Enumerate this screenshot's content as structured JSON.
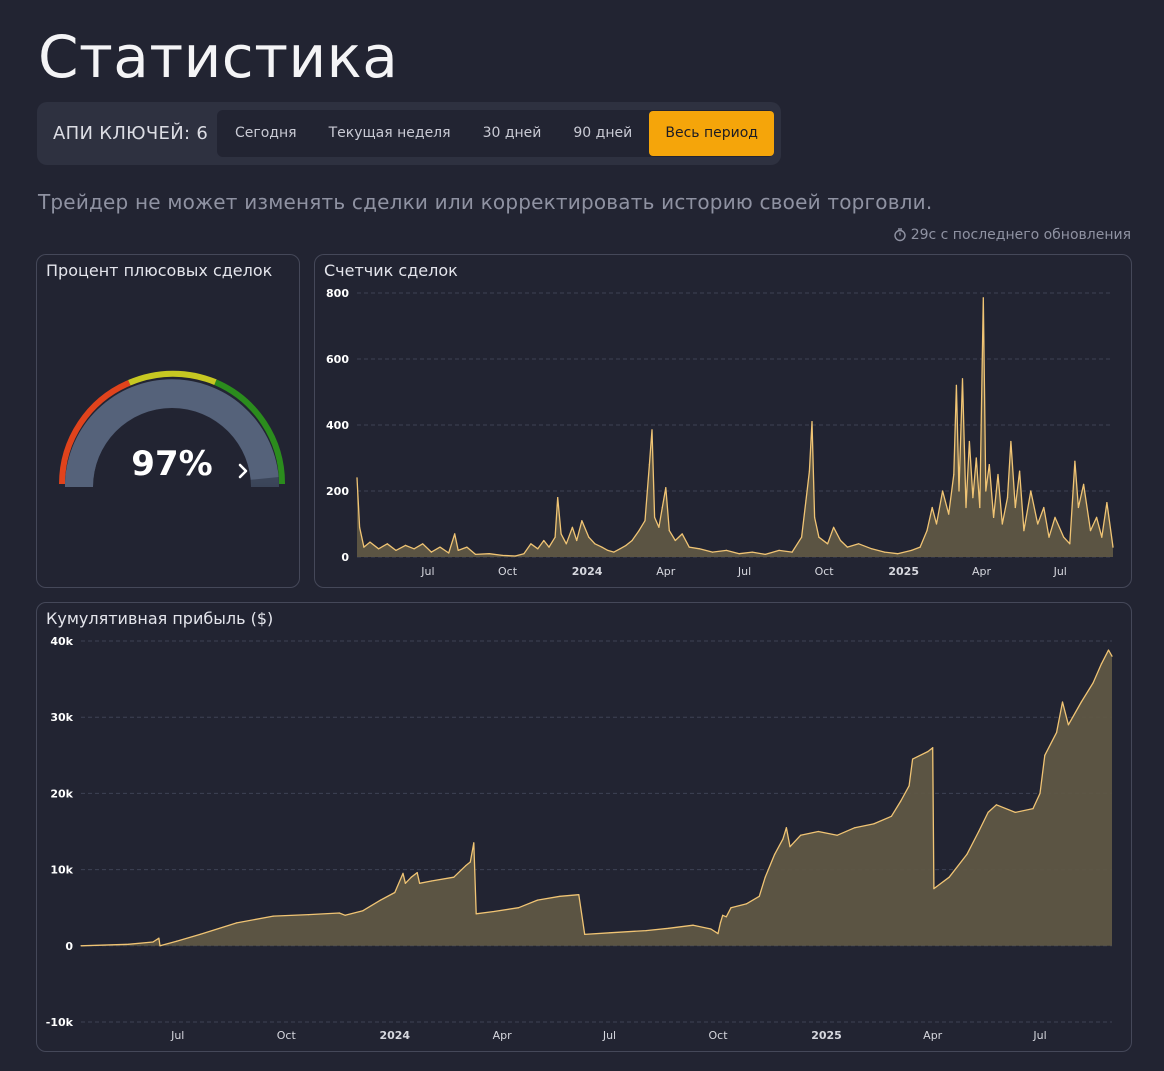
{
  "page": {
    "title": "Статистика"
  },
  "filters": {
    "api_keys_label": "АПИ КЛЮЧЕЙ: 6",
    "periods": [
      "Сегодня",
      "Текущая неделя",
      "30 дней",
      "90 дней",
      "Весь период"
    ],
    "active_period": "Весь период"
  },
  "disclaimer": "Трейдер не может изменять сделки или корректировать историю своей торговли.",
  "last_update": "29с с последнего обновления",
  "colors": {
    "background": "#222432",
    "accent": "#f5a50a",
    "line": "#f0c474",
    "area_fill": "#5f5745",
    "gauge_red": "#e0431c",
    "gauge_yellow": "#c7c822",
    "gauge_green": "#2b8c1d"
  },
  "win_rate": {
    "title": "Процент плюсовых сделок",
    "value_label": "97%",
    "value": 97
  },
  "trade_counter": {
    "title": "Счетчик сделок",
    "chart_data": {
      "type": "area",
      "ylim": [
        0,
        800
      ],
      "y_ticks": [
        "0",
        "200",
        "400",
        "600",
        "800"
      ],
      "x_ticks": [
        "Jul",
        "Oct",
        "2024",
        "Apr",
        "Jul",
        "Oct",
        "2025",
        "Apr",
        "Jul"
      ],
      "x_tick_dates": [
        "2023-07-01",
        "2023-10-01",
        "2024-01-01",
        "2024-04-01",
        "2024-07-01",
        "2024-10-01",
        "2025-01-01",
        "2025-04-01",
        "2025-07-01"
      ],
      "x_range": [
        "2023-04-10",
        "2025-08-31"
      ],
      "grid": "horizontal dashed",
      "points": [
        [
          "2023-04-10",
          240
        ],
        [
          "2023-04-13",
          90
        ],
        [
          "2023-04-18",
          30
        ],
        [
          "2023-04-25",
          45
        ],
        [
          "2023-05-05",
          25
        ],
        [
          "2023-05-15",
          40
        ],
        [
          "2023-05-25",
          20
        ],
        [
          "2023-06-05",
          35
        ],
        [
          "2023-06-15",
          25
        ],
        [
          "2023-06-25",
          40
        ],
        [
          "2023-07-05",
          15
        ],
        [
          "2023-07-15",
          30
        ],
        [
          "2023-07-25",
          12
        ],
        [
          "2023-08-01",
          70
        ],
        [
          "2023-08-05",
          20
        ],
        [
          "2023-08-15",
          30
        ],
        [
          "2023-08-25",
          8
        ],
        [
          "2023-09-10",
          10
        ],
        [
          "2023-09-25",
          5
        ],
        [
          "2023-10-10",
          3
        ],
        [
          "2023-10-20",
          10
        ],
        [
          "2023-10-28",
          40
        ],
        [
          "2023-11-05",
          25
        ],
        [
          "2023-11-12",
          50
        ],
        [
          "2023-11-18",
          30
        ],
        [
          "2023-11-25",
          60
        ],
        [
          "2023-11-28",
          180
        ],
        [
          "2023-12-02",
          70
        ],
        [
          "2023-12-08",
          40
        ],
        [
          "2023-12-15",
          90
        ],
        [
          "2023-12-20",
          50
        ],
        [
          "2023-12-26",
          110
        ],
        [
          "2024-01-03",
          60
        ],
        [
          "2024-01-10",
          40
        ],
        [
          "2024-01-18",
          30
        ],
        [
          "2024-01-25",
          20
        ],
        [
          "2024-02-01",
          15
        ],
        [
          "2024-02-08",
          25
        ],
        [
          "2024-02-15",
          35
        ],
        [
          "2024-02-22",
          50
        ],
        [
          "2024-03-01",
          80
        ],
        [
          "2024-03-08",
          110
        ],
        [
          "2024-03-13",
          280
        ],
        [
          "2024-03-16",
          385
        ],
        [
          "2024-03-19",
          120
        ],
        [
          "2024-03-24",
          90
        ],
        [
          "2024-03-28",
          150
        ],
        [
          "2024-04-01",
          210
        ],
        [
          "2024-04-05",
          80
        ],
        [
          "2024-04-12",
          50
        ],
        [
          "2024-04-20",
          70
        ],
        [
          "2024-04-28",
          30
        ],
        [
          "2024-05-10",
          25
        ],
        [
          "2024-05-25",
          15
        ],
        [
          "2024-06-10",
          20
        ],
        [
          "2024-06-25",
          10
        ],
        [
          "2024-07-10",
          15
        ],
        [
          "2024-07-25",
          8
        ],
        [
          "2024-08-10",
          20
        ],
        [
          "2024-08-25",
          15
        ],
        [
          "2024-09-05",
          60
        ],
        [
          "2024-09-10",
          170
        ],
        [
          "2024-09-14",
          260
        ],
        [
          "2024-09-17",
          410
        ],
        [
          "2024-09-20",
          120
        ],
        [
          "2024-09-25",
          60
        ],
        [
          "2024-10-05",
          40
        ],
        [
          "2024-10-12",
          90
        ],
        [
          "2024-10-20",
          50
        ],
        [
          "2024-10-28",
          30
        ],
        [
          "2024-11-10",
          40
        ],
        [
          "2024-11-25",
          25
        ],
        [
          "2024-12-10",
          15
        ],
        [
          "2024-12-25",
          10
        ],
        [
          "2025-01-10",
          20
        ],
        [
          "2025-01-20",
          30
        ],
        [
          "2025-01-28",
          80
        ],
        [
          "2025-02-03",
          150
        ],
        [
          "2025-02-08",
          100
        ],
        [
          "2025-02-15",
          200
        ],
        [
          "2025-02-22",
          130
        ],
        [
          "2025-02-28",
          250
        ],
        [
          "2025-03-03",
          520
        ],
        [
          "2025-03-06",
          200
        ],
        [
          "2025-03-10",
          540
        ],
        [
          "2025-03-14",
          150
        ],
        [
          "2025-03-18",
          350
        ],
        [
          "2025-03-22",
          180
        ],
        [
          "2025-03-26",
          300
        ],
        [
          "2025-03-30",
          150
        ],
        [
          "2025-04-03",
          785
        ],
        [
          "2025-04-06",
          200
        ],
        [
          "2025-04-10",
          280
        ],
        [
          "2025-04-15",
          120
        ],
        [
          "2025-04-20",
          250
        ],
        [
          "2025-04-25",
          100
        ],
        [
          "2025-05-01",
          180
        ],
        [
          "2025-05-05",
          350
        ],
        [
          "2025-05-10",
          150
        ],
        [
          "2025-05-15",
          260
        ],
        [
          "2025-05-20",
          80
        ],
        [
          "2025-05-28",
          200
        ],
        [
          "2025-06-05",
          100
        ],
        [
          "2025-06-12",
          150
        ],
        [
          "2025-06-18",
          60
        ],
        [
          "2025-06-25",
          120
        ],
        [
          "2025-07-05",
          60
        ],
        [
          "2025-07-12",
          40
        ],
        [
          "2025-07-18",
          290
        ],
        [
          "2025-07-22",
          150
        ],
        [
          "2025-07-28",
          220
        ],
        [
          "2025-08-05",
          80
        ],
        [
          "2025-08-12",
          120
        ],
        [
          "2025-08-18",
          60
        ],
        [
          "2025-08-24",
          165
        ],
        [
          "2025-08-31",
          30
        ]
      ]
    }
  },
  "cumulative_profit": {
    "title": "Кумулятивная прибыль ($)",
    "chart_data": {
      "type": "area",
      "ylim": [
        -10000,
        40000
      ],
      "y_ticks": [
        "-10k",
        "0",
        "10k",
        "20k",
        "30k",
        "40k"
      ],
      "x_ticks": [
        "Jul",
        "Oct",
        "2024",
        "Apr",
        "Jul",
        "Oct",
        "2025",
        "Apr",
        "Jul"
      ],
      "x_tick_dates": [
        "2023-07-01",
        "2023-10-01",
        "2024-01-01",
        "2024-04-01",
        "2024-07-01",
        "2024-10-01",
        "2025-01-01",
        "2025-04-01",
        "2025-07-01"
      ],
      "x_range": [
        "2023-04-10",
        "2025-08-31"
      ],
      "grid": "horizontal dashed",
      "points": [
        [
          "2023-04-10",
          0
        ],
        [
          "2023-05-20",
          200
        ],
        [
          "2023-06-10",
          500
        ],
        [
          "2023-06-15",
          1000
        ],
        [
          "2023-06-16",
          0
        ],
        [
          "2023-06-30",
          600
        ],
        [
          "2023-07-20",
          1500
        ],
        [
          "2023-08-20",
          3000
        ],
        [
          "2023-09-20",
          3900
        ],
        [
          "2023-10-20",
          4100
        ],
        [
          "2023-11-15",
          4300
        ],
        [
          "2023-11-20",
          4000
        ],
        [
          "2023-12-05",
          4600
        ],
        [
          "2023-12-20",
          6000
        ],
        [
          "2024-01-01",
          7000
        ],
        [
          "2024-01-08",
          9500
        ],
        [
          "2024-01-10",
          8200
        ],
        [
          "2024-01-15",
          9000
        ],
        [
          "2024-01-20",
          9600
        ],
        [
          "2024-01-22",
          8200
        ],
        [
          "2024-02-01",
          8500
        ],
        [
          "2024-02-20",
          9000
        ],
        [
          "2024-03-01",
          10500
        ],
        [
          "2024-03-05",
          11000
        ],
        [
          "2024-03-08",
          13500
        ],
        [
          "2024-03-10",
          4200
        ],
        [
          "2024-03-25",
          4500
        ],
        [
          "2024-04-15",
          5000
        ],
        [
          "2024-05-01",
          6000
        ],
        [
          "2024-05-20",
          6500
        ],
        [
          "2024-06-05",
          6700
        ],
        [
          "2024-06-10",
          1500
        ],
        [
          "2024-07-01",
          1700
        ],
        [
          "2024-08-01",
          2000
        ],
        [
          "2024-08-20",
          2300
        ],
        [
          "2024-09-10",
          2700
        ],
        [
          "2024-09-25",
          2200
        ],
        [
          "2024-10-01",
          1600
        ],
        [
          "2024-10-03",
          3000
        ],
        [
          "2024-10-05",
          4000
        ],
        [
          "2024-10-08",
          3800
        ],
        [
          "2024-10-12",
          5000
        ],
        [
          "2024-10-25",
          5500
        ],
        [
          "2024-11-05",
          6500
        ],
        [
          "2024-11-10",
          9000
        ],
        [
          "2024-11-18",
          12000
        ],
        [
          "2024-11-25",
          14000
        ],
        [
          "2024-11-28",
          15500
        ],
        [
          "2024-12-01",
          13000
        ],
        [
          "2024-12-10",
          14500
        ],
        [
          "2024-12-25",
          15000
        ],
        [
          "2025-01-10",
          14500
        ],
        [
          "2025-01-25",
          15500
        ],
        [
          "2025-02-10",
          16000
        ],
        [
          "2025-02-25",
          17000
        ],
        [
          "2025-03-05",
          19000
        ],
        [
          "2025-03-12",
          21000
        ],
        [
          "2025-03-15",
          24500
        ],
        [
          "2025-03-28",
          25500
        ],
        [
          "2025-04-01",
          26000
        ],
        [
          "2025-04-02",
          7500
        ],
        [
          "2025-04-15",
          9000
        ],
        [
          "2025-04-30",
          12000
        ],
        [
          "2025-05-10",
          15000
        ],
        [
          "2025-05-18",
          17500
        ],
        [
          "2025-05-25",
          18500
        ],
        [
          "2025-06-10",
          17500
        ],
        [
          "2025-06-25",
          18000
        ],
        [
          "2025-07-01",
          20000
        ],
        [
          "2025-07-05",
          25000
        ],
        [
          "2025-07-15",
          28000
        ],
        [
          "2025-07-20",
          32000
        ],
        [
          "2025-07-25",
          29000
        ],
        [
          "2025-08-05",
          32000
        ],
        [
          "2025-08-15",
          34500
        ],
        [
          "2025-08-22",
          37000
        ],
        [
          "2025-08-28",
          38800
        ],
        [
          "2025-08-31",
          38000
        ]
      ]
    }
  }
}
